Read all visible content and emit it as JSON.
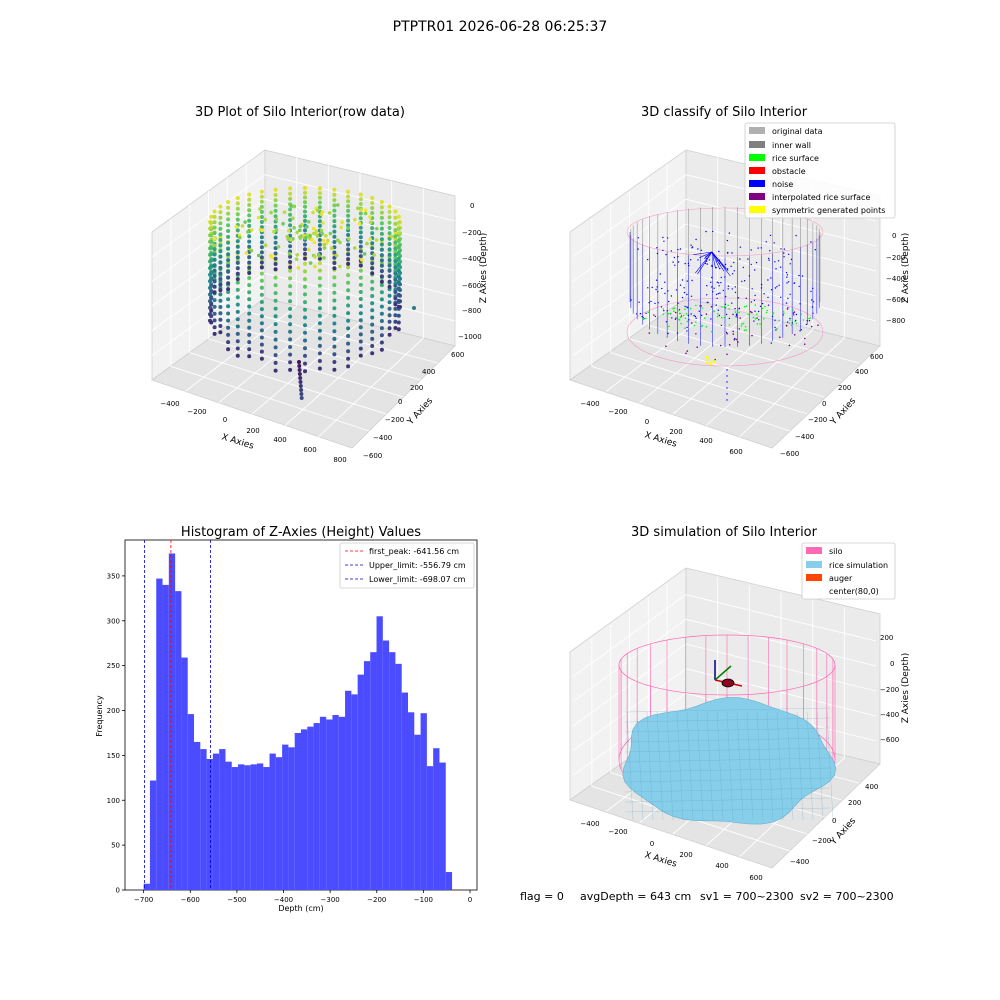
{
  "suptitle": "PTPTR01 2026-06-28 06:25:37",
  "footer": {
    "flag": "flag = 0",
    "avg_depth": "avgDepth = 643 cm",
    "sv1": "sv1 = 700~2300",
    "sv2": "sv2 = 700~2300"
  },
  "colors": {
    "hist_bar": "#4b4bff",
    "first_peak_line": "#ff0000",
    "limit_line": "#0000cc",
    "original_data": "#b0b0b0",
    "inner_wall": "#808080",
    "rice_surface": "#00ff00",
    "obstacle": "#ff0000",
    "noise": "#0000ff",
    "interpolated_rice_surface": "#800080",
    "symmetric_generated_points": "#ffff00",
    "silo": "#ff69b4",
    "rice_simulation": "#87ceeb",
    "auger": "#ff4500"
  },
  "chart_data": [
    {
      "type": "scatter",
      "title": "3D Plot of Silo Interior(row data)",
      "xlabel": "X Axies",
      "ylabel": "Y Axies",
      "zlabel": "Z Axies (Depth)",
      "x_ticks": [
        "−400",
        "−200",
        "0",
        "200",
        "400",
        "600",
        "800"
      ],
      "y_ticks": [
        "−600",
        "−400",
        "−200",
        "0",
        "200",
        "400",
        "600"
      ],
      "z_ticks": [
        "0",
        "−200",
        "−400",
        "−600",
        "−800",
        "−1000"
      ],
      "xlim": [
        -500,
        800
      ],
      "ylim": [
        -600,
        600
      ],
      "zlim": [
        -1000,
        0
      ],
      "colormap": "viridis"
    },
    {
      "type": "scatter",
      "title": "3D classify of Silo Interior",
      "xlabel": "X Axies",
      "ylabel": "Y Axies",
      "zlabel": "Z Axies (Depth)",
      "x_ticks": [
        "−400",
        "−200",
        "0",
        "200",
        "400",
        "600"
      ],
      "y_ticks": [
        "−600",
        "−400",
        "−200",
        "0",
        "200",
        "400",
        "600"
      ],
      "z_ticks": [
        "0",
        "−200",
        "−400",
        "−600",
        "−800"
      ],
      "xlim": [
        -500,
        700
      ],
      "ylim": [
        -600,
        600
      ],
      "zlim": [
        -900,
        0
      ],
      "legend_position": "top-right",
      "legend": [
        "original data",
        "inner wall",
        "rice surface",
        "obstacle",
        "noise",
        "interpolated rice surface",
        "symmetric generated points"
      ]
    },
    {
      "type": "bar",
      "title": "Histogram of Z-Axies (Height) Values",
      "xlabel": "Depth (cm)",
      "ylabel": "Frequency",
      "xlim": [
        -740,
        15
      ],
      "ylim": [
        0,
        390
      ],
      "x_ticks": [
        -700,
        -600,
        -500,
        -400,
        -300,
        -200,
        -100,
        0
      ],
      "y_ticks": [
        0,
        50,
        100,
        150,
        200,
        250,
        300,
        350
      ],
      "bin_start": -700,
      "bin_width": 13.5,
      "values": [
        7,
        122,
        347,
        340,
        375,
        333,
        259,
        196,
        165,
        157,
        146,
        152,
        157,
        143,
        137,
        140,
        139,
        140,
        141,
        137,
        152,
        148,
        162,
        159,
        175,
        179,
        182,
        186,
        193,
        190,
        195,
        193,
        222,
        218,
        240,
        255,
        265,
        305,
        278,
        265,
        252,
        220,
        198,
        173,
        197,
        138,
        158,
        142,
        20
      ],
      "lines": [
        {
          "name": "first_peak: -641.56 cm",
          "x": -641.56,
          "style": "dashed"
        },
        {
          "name": "Upper_limit: -556.79 cm",
          "x": -556.79,
          "style": "dashed"
        },
        {
          "name": "Lower_limit: -698.07 cm",
          "x": -698.07,
          "style": "dashed"
        }
      ],
      "legend_position": "top-right"
    },
    {
      "type": "surface",
      "title": "3D simulation of Silo Interior",
      "xlabel": "X Axies",
      "ylabel": "Y Axies",
      "zlabel": "Z Axies (Depth)",
      "x_ticks": [
        "−400",
        "−200",
        "0",
        "200",
        "400",
        "600"
      ],
      "y_ticks": [
        "−400",
        "−200",
        "0",
        "200",
        "400"
      ],
      "z_ticks": [
        "200",
        "0",
        "−200",
        "−400",
        "−600"
      ],
      "zlim": [
        -700,
        300
      ],
      "legend_position": "top-right",
      "legend": [
        "silo",
        "rice simulation",
        "auger",
        "center(80,0)"
      ]
    }
  ]
}
